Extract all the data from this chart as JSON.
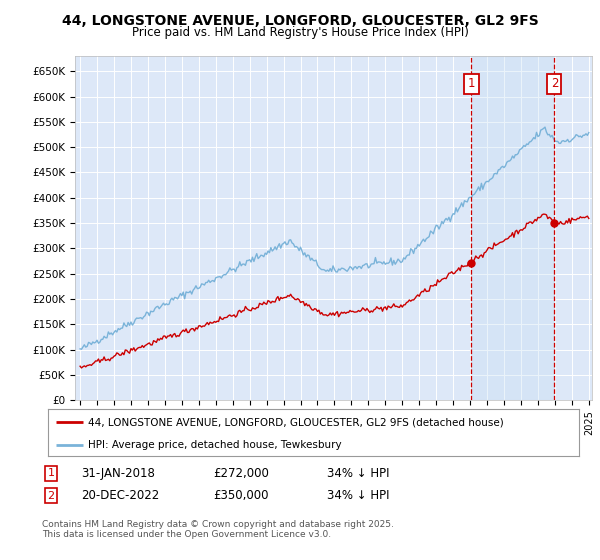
{
  "title_line1": "44, LONGSTONE AVENUE, LONGFORD, GLOUCESTER, GL2 9FS",
  "title_line2": "Price paid vs. HM Land Registry's House Price Index (HPI)",
  "background_color": "#ffffff",
  "plot_bg_color": "#dde8f8",
  "grid_color": "#ffffff",
  "hpi_color": "#7ab3d9",
  "hpi_fill_color": "#c8dff4",
  "price_color": "#cc0000",
  "vline_color": "#cc0000",
  "annotation_box_color": "#cc0000",
  "ylim": [
    0,
    680000
  ],
  "yticks": [
    0,
    50000,
    100000,
    150000,
    200000,
    250000,
    300000,
    350000,
    400000,
    450000,
    500000,
    550000,
    600000,
    650000
  ],
  "ytick_labels": [
    "£0",
    "£50K",
    "£100K",
    "£150K",
    "£200K",
    "£250K",
    "£300K",
    "£350K",
    "£400K",
    "£450K",
    "£500K",
    "£550K",
    "£600K",
    "£650K"
  ],
  "sale1_date_num": 2018.08,
  "sale1_price": 272000,
  "sale2_date_num": 2022.97,
  "sale2_price": 350000,
  "xlim_left": 1995.0,
  "xlim_right": 2025.2,
  "legend_line1": "44, LONGSTONE AVENUE, LONGFORD, GLOUCESTER, GL2 9FS (detached house)",
  "legend_line2": "HPI: Average price, detached house, Tewkesbury",
  "annotation1_date": "31-JAN-2018",
  "annotation1_price": "£272,000",
  "annotation1_note": "34% ↓ HPI",
  "annotation2_date": "20-DEC-2022",
  "annotation2_price": "£350,000",
  "annotation2_note": "34% ↓ HPI",
  "footnote": "Contains HM Land Registry data © Crown copyright and database right 2025.\nThis data is licensed under the Open Government Licence v3.0."
}
